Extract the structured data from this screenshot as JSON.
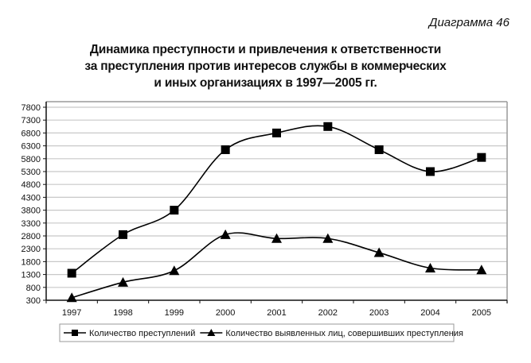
{
  "header": {
    "diagram_number": "Диаграмма 46",
    "title_lines": [
      "Динамика преступности и привлечения к ответственности",
      "за преступления против интересов службы в коммерческих",
      "и иных организациях в 1997—2005 гг."
    ]
  },
  "chart_data": {
    "type": "line",
    "title": "Динамика преступности и привлечения к ответственности за преступления против интересов службы в коммерческих и иных организациях в 1997—2005 гг.",
    "subtitle": "Диаграмма 46",
    "xlabel": "",
    "ylabel": "",
    "categories": [
      "1997",
      "1998",
      "1999",
      "2000",
      "2001",
      "2002",
      "2003",
      "2004",
      "2005"
    ],
    "y_ticks": [
      300,
      800,
      1300,
      1800,
      2300,
      2800,
      3300,
      3800,
      4300,
      4800,
      5300,
      5800,
      6300,
      6800,
      7300,
      7800
    ],
    "ylim": [
      300,
      7800
    ],
    "grid": true,
    "legend_position": "bottom",
    "smooth": true,
    "series": [
      {
        "name": "Количество преступлений",
        "marker": "square",
        "color": "#000000",
        "values": [
          1350,
          2850,
          3800,
          6150,
          6800,
          7050,
          6150,
          5300,
          5850
        ]
      },
      {
        "name": "Количество выявленных лиц, совершивших преступления",
        "marker": "triangle",
        "color": "#000000",
        "values": [
          400,
          1000,
          1450,
          2850,
          2700,
          2700,
          2150,
          1550,
          1480
        ]
      }
    ]
  }
}
